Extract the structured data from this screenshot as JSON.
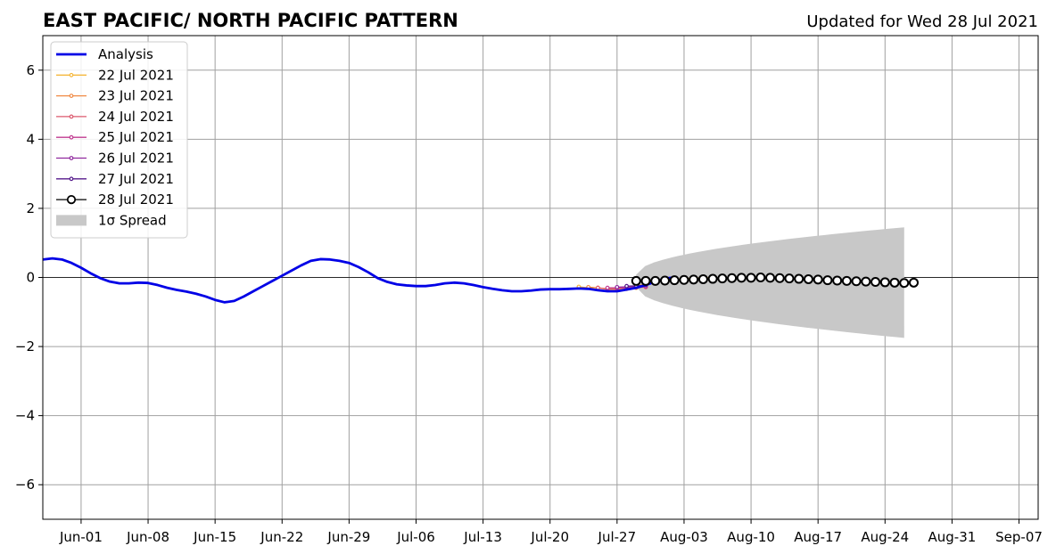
{
  "chart_data": {
    "type": "line",
    "title": "EAST PACIFIC/ NORTH PACIFIC PATTERN",
    "subtitle": "Updated for Wed 28 Jul 2021",
    "xlabel": "",
    "ylabel": "",
    "x_start_date": "2021-05-28",
    "x_end_date": "2021-09-09",
    "ylim": [
      -7,
      7
    ],
    "yticks": [
      -6,
      -4,
      -2,
      0,
      2,
      4,
      6
    ],
    "ytick_labels": [
      "−6",
      "−4",
      "−2",
      "0",
      "2",
      "4",
      "6"
    ],
    "xticks": [
      "2021-06-01",
      "2021-06-08",
      "2021-06-15",
      "2021-06-22",
      "2021-06-29",
      "2021-07-06",
      "2021-07-13",
      "2021-07-20",
      "2021-07-27",
      "2021-08-03",
      "2021-08-10",
      "2021-08-17",
      "2021-08-24",
      "2021-08-31",
      "2021-09-07"
    ],
    "xtick_labels": [
      "Jun-01",
      "Jun-08",
      "Jun-15",
      "Jun-22",
      "Jun-29",
      "Jul-06",
      "Jul-13",
      "Jul-20",
      "Jul-27",
      "Aug-03",
      "Aug-10",
      "Aug-17",
      "Aug-24",
      "Aug-31",
      "Sep-07"
    ],
    "grid": true,
    "zero_line": true,
    "legend_position": "upper-left",
    "analysis": {
      "name": "Analysis",
      "color": "#0000e6",
      "start_date": "2021-05-28",
      "values": [
        0.52,
        0.55,
        0.52,
        0.42,
        0.28,
        0.12,
        -0.02,
        -0.12,
        -0.17,
        -0.17,
        -0.15,
        -0.16,
        -0.22,
        -0.3,
        -0.36,
        -0.41,
        -0.47,
        -0.55,
        -0.65,
        -0.72,
        -0.68,
        -0.55,
        -0.4,
        -0.25,
        -0.1,
        0.05,
        0.2,
        0.35,
        0.48,
        0.53,
        0.52,
        0.48,
        0.42,
        0.3,
        0.15,
        -0.02,
        -0.13,
        -0.2,
        -0.23,
        -0.25,
        -0.25,
        -0.22,
        -0.17,
        -0.15,
        -0.17,
        -0.22,
        -0.28,
        -0.33,
        -0.37,
        -0.4,
        -0.4,
        -0.38,
        -0.35,
        -0.34,
        -0.34,
        -0.33,
        -0.32,
        -0.33,
        -0.37,
        -0.4,
        -0.4,
        -0.35,
        -0.3,
        -0.22,
        -0.12,
        -0.03,
        0.0
      ]
    },
    "forecast_series": [
      {
        "name": "22 Jul 2021",
        "color": "#f5b83d",
        "start_date": "2021-07-23",
        "values": [
          -0.27,
          -0.3,
          -0.3,
          -0.33,
          -0.33,
          -0.3,
          -0.25,
          -0.18,
          -0.12,
          -0.08,
          -0.05,
          -0.03,
          -0.02,
          -0.01,
          0.0
        ]
      },
      {
        "name": "23 Jul 2021",
        "color": "#f08a45",
        "start_date": "2021-07-24",
        "values": [
          -0.28,
          -0.3,
          -0.35,
          -0.35,
          -0.33,
          -0.3,
          -0.28
        ]
      },
      {
        "name": "24 Jul 2021",
        "color": "#dc5a6e",
        "start_date": "2021-07-25",
        "values": [
          -0.3,
          -0.33,
          -0.32,
          -0.3,
          -0.28,
          -0.28
        ]
      },
      {
        "name": "25 Jul 2021",
        "color": "#c03a8f",
        "start_date": "2021-07-26",
        "values": [
          -0.3,
          -0.3,
          -0.3,
          -0.28,
          -0.27
        ]
      },
      {
        "name": "26 Jul 2021",
        "color": "#902a9e",
        "start_date": "2021-07-27",
        "values": [
          -0.28,
          -0.27,
          -0.25,
          -0.23
        ]
      },
      {
        "name": "27 Jul 2021",
        "color": "#551a8b",
        "start_date": "2021-07-28",
        "values": [
          -0.25,
          -0.24,
          -0.22
        ]
      },
      {
        "name": "28 Jul 2021",
        "color": "#000000",
        "start_date": "2021-07-29",
        "values": [
          -0.1,
          -0.1,
          -0.1,
          -0.09,
          -0.08,
          -0.07,
          -0.06,
          -0.05,
          -0.04,
          -0.03,
          -0.02,
          -0.01,
          -0.01,
          0.0,
          -0.01,
          -0.02,
          -0.03,
          -0.04,
          -0.05,
          -0.06,
          -0.08,
          -0.09,
          -0.1,
          -0.11,
          -0.12,
          -0.13,
          -0.14,
          -0.15,
          -0.16,
          -0.15
        ]
      }
    ],
    "spread": {
      "name": "1σ Spread",
      "color": "#c8c8c8",
      "start_date": "2021-07-29",
      "end_date": "2021-08-26",
      "upper_start": 0.08,
      "upper_end": 1.45,
      "lower_start": -0.28,
      "lower_end": -1.75
    }
  }
}
